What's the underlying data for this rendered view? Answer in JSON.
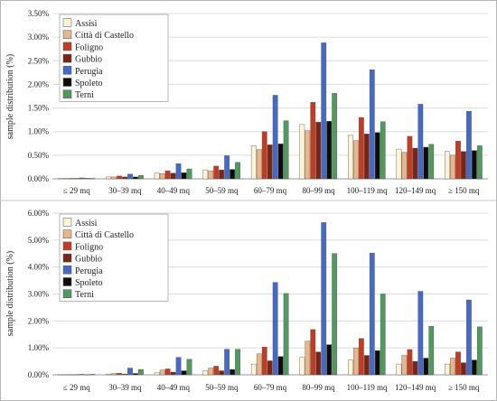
{
  "chart_data": [
    {
      "type": "bar",
      "ylabel": "sample distribution (%)",
      "xlabel": "",
      "categories": [
        "≤ 29 mq",
        "30–39 mq",
        "40–49 mq",
        "50–59 mq",
        "60–79 mq",
        "80–99 mq",
        "100–119 mq",
        "120–149 mq",
        "≥ 150 mq"
      ],
      "yticks": [
        "0.00%",
        "0.50%",
        "1.00%",
        "1.50%",
        "2.00%",
        "2.50%",
        "3.00%",
        "3.50%"
      ],
      "ylim": [
        0,
        3.5
      ],
      "grid": true,
      "legend": "top-left",
      "series": [
        {
          "name": "Assisi",
          "color": "#fdf3d6",
          "values": [
            0.01,
            0.04,
            0.12,
            0.19,
            0.7,
            1.15,
            0.92,
            0.63,
            0.58
          ]
        },
        {
          "name": "Città di Castello",
          "color": "#e7b789",
          "values": [
            0.01,
            0.04,
            0.11,
            0.17,
            0.62,
            1.02,
            0.81,
            0.56,
            0.5
          ]
        },
        {
          "name": "Foligno",
          "color": "#c43b22",
          "values": [
            0.01,
            0.06,
            0.17,
            0.27,
            1.0,
            1.62,
            1.3,
            0.9,
            0.8
          ]
        },
        {
          "name": "Gubbio",
          "color": "#7a2414",
          "values": [
            0.01,
            0.04,
            0.12,
            0.19,
            0.72,
            1.2,
            0.95,
            0.65,
            0.58
          ]
        },
        {
          "name": "Perugia",
          "color": "#4569c8",
          "values": [
            0.02,
            0.1,
            0.32,
            0.49,
            1.77,
            2.88,
            2.31,
            1.58,
            1.43
          ]
        },
        {
          "name": "Spoleto",
          "color": "#0d0d0d",
          "values": [
            0.01,
            0.04,
            0.13,
            0.2,
            0.74,
            1.22,
            0.98,
            0.67,
            0.6
          ]
        },
        {
          "name": "Terni",
          "color": "#4f9a5c",
          "values": [
            0.01,
            0.07,
            0.21,
            0.35,
            1.23,
            1.81,
            1.21,
            0.73,
            0.7
          ]
        }
      ]
    },
    {
      "type": "bar",
      "ylabel": "sample distribution (%)",
      "xlabel": "",
      "categories": [
        "≤ 29 mq",
        "30–39 mq",
        "40–49 mq",
        "50–59 mq",
        "60–79 mq",
        "80–99 mq",
        "100–119 mq",
        "120–149 mq",
        "≥ 150 mq"
      ],
      "yticks": [
        "0.00%",
        "1.00%",
        "2.00%",
        "3.00%",
        "4.00%",
        "5.00%",
        "6.00%"
      ],
      "ylim": [
        0,
        6.0
      ],
      "grid": true,
      "legend": "top-left",
      "series": [
        {
          "name": "Assisi",
          "color": "#fdf3d6",
          "values": [
            0.01,
            0.03,
            0.08,
            0.15,
            0.4,
            0.65,
            0.55,
            0.4,
            0.4
          ]
        },
        {
          "name": "Città di Castello",
          "color": "#e7b789",
          "values": [
            0.01,
            0.05,
            0.18,
            0.25,
            0.78,
            1.25,
            1.0,
            0.72,
            0.62
          ]
        },
        {
          "name": "Foligno",
          "color": "#c43b22",
          "values": [
            0.01,
            0.06,
            0.22,
            0.32,
            1.03,
            1.68,
            1.35,
            0.94,
            0.85
          ]
        },
        {
          "name": "Gubbio",
          "color": "#7a2414",
          "values": [
            0.01,
            0.03,
            0.1,
            0.15,
            0.52,
            0.85,
            0.72,
            0.5,
            0.45
          ]
        },
        {
          "name": "Perugia",
          "color": "#4569c8",
          "values": [
            0.02,
            0.25,
            0.65,
            0.95,
            3.43,
            5.65,
            4.52,
            3.1,
            2.78
          ]
        },
        {
          "name": "Spoleto",
          "color": "#0d0d0d",
          "values": [
            0.01,
            0.05,
            0.15,
            0.2,
            0.68,
            1.12,
            0.9,
            0.62,
            0.55
          ]
        },
        {
          "name": "Terni",
          "color": "#4f9a5c",
          "values": [
            0.02,
            0.2,
            0.58,
            0.95,
            3.02,
            4.5,
            3.0,
            1.8,
            1.78
          ]
        }
      ]
    }
  ]
}
